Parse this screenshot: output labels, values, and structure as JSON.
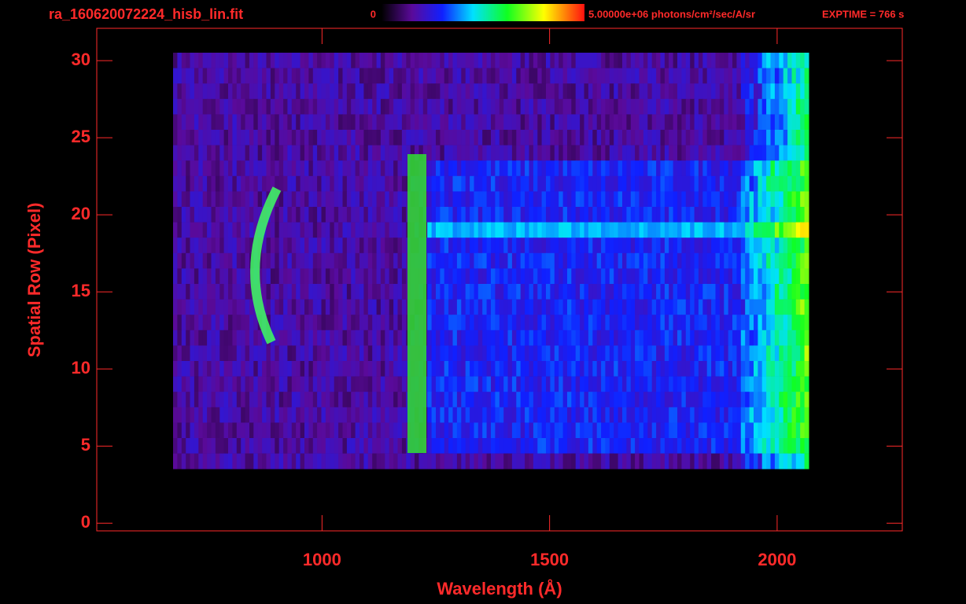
{
  "chart_data": {
    "type": "image",
    "title": "ra_160620072224_hisb_lin.fit",
    "colorbar_labels": [
      "0",
      "5.00000e+06 photons/cm²/sec/A/sr"
    ],
    "annotation": "EXPTIME = 766 s",
    "xlabel": "Wavelength (Å)",
    "ylabel": "Spatial Row (Pixel)",
    "xlim": [
      505,
      2275
    ],
    "xticks": [
      1000,
      1500,
      2000
    ],
    "ylim": [
      -0.5,
      32.1
    ],
    "yticks": [
      0,
      5,
      10,
      15,
      20,
      25,
      30
    ],
    "color": "#ff2a2a"
  }
}
